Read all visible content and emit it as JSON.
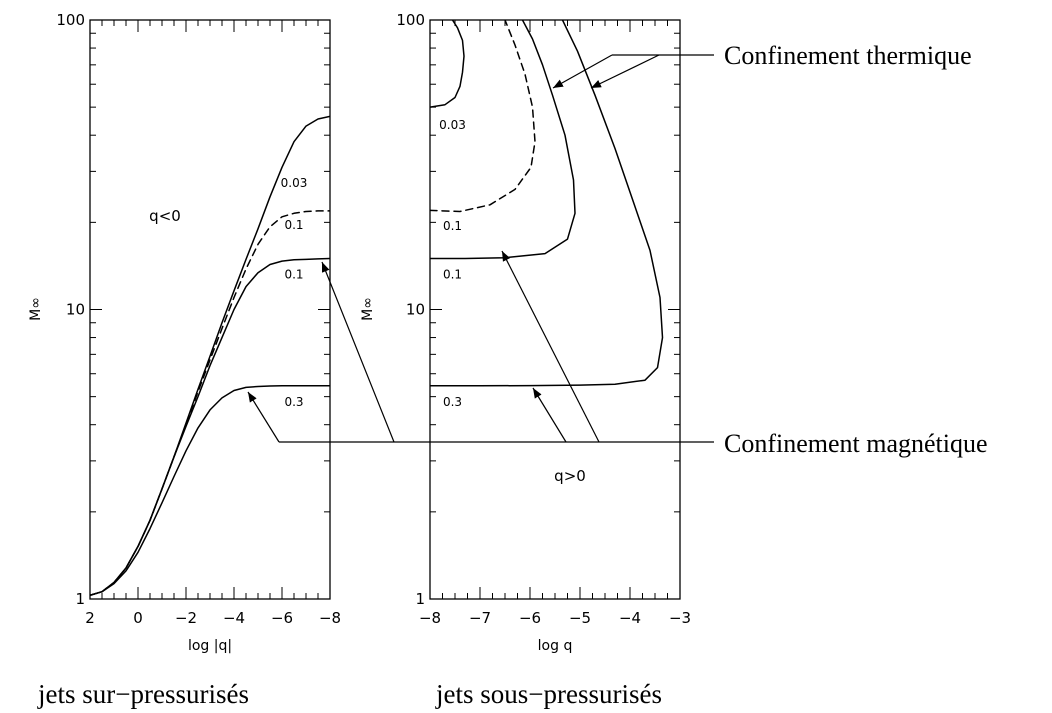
{
  "chart_data": [
    {
      "type": "line",
      "panel": "left",
      "xlabel": "log |q|",
      "ylabel": "M∞",
      "xlim": [
        2,
        -8
      ],
      "ylim": [
        1,
        100
      ],
      "yscale": "log",
      "xticks": [
        2,
        0,
        -2,
        -4,
        -6,
        -8
      ],
      "xtick_labels": [
        "2",
        "0",
        "−2",
        "−4",
        "−6",
        "−8"
      ],
      "yticks": [
        1,
        10,
        100
      ],
      "ytick_labels": [
        "1",
        "10",
        "100"
      ],
      "region_label": "q<0",
      "caption": "jets sur−pressurisés",
      "series": [
        {
          "name": "0.03",
          "style": "solid",
          "x": [
            2.0,
            1.5,
            1.0,
            0.5,
            0.0,
            -0.5,
            -1.0,
            -1.5,
            -2.0,
            -2.5,
            -3.0,
            -3.5,
            -4.0,
            -4.5,
            -5.0,
            -5.5,
            -6.0,
            -6.5,
            -7.0,
            -7.5,
            -8.0
          ],
          "y": [
            1.03,
            1.06,
            1.14,
            1.28,
            1.52,
            1.87,
            2.4,
            3.1,
            4.05,
            5.3,
            6.9,
            9.0,
            11.6,
            14.9,
            19.0,
            24.5,
            31.0,
            38.0,
            43.0,
            45.5,
            46.5
          ]
        },
        {
          "name": "0.1",
          "style": "dashed",
          "x": [
            2.0,
            1.5,
            1.0,
            0.5,
            0.0,
            -0.5,
            -1.0,
            -1.5,
            -2.0,
            -2.5,
            -3.0,
            -3.5,
            -4.0,
            -4.5,
            -5.0,
            -5.5,
            -6.0,
            -6.5,
            -7.0,
            -7.5,
            -8.0
          ],
          "y": [
            1.03,
            1.06,
            1.14,
            1.28,
            1.52,
            1.87,
            2.4,
            3.1,
            4.0,
            5.2,
            6.7,
            8.6,
            11.0,
            13.8,
            16.8,
            19.3,
            20.9,
            21.5,
            21.8,
            21.9,
            21.9
          ]
        },
        {
          "name": "0.1",
          "style": "solid",
          "x": [
            2.0,
            1.5,
            1.0,
            0.5,
            0.0,
            -0.5,
            -1.0,
            -1.5,
            -2.0,
            -2.5,
            -3.0,
            -3.5,
            -4.0,
            -4.5,
            -5.0,
            -5.5,
            -6.0,
            -6.5,
            -7.0,
            -7.5,
            -8.0
          ],
          "y": [
            1.03,
            1.06,
            1.14,
            1.28,
            1.52,
            1.87,
            2.4,
            3.1,
            3.95,
            5.0,
            6.4,
            8.0,
            10.0,
            12.0,
            13.4,
            14.3,
            14.7,
            14.85,
            14.9,
            14.95,
            15.0
          ]
        },
        {
          "name": "0.3",
          "style": "solid",
          "x": [
            2.0,
            1.5,
            1.0,
            0.5,
            0.0,
            -0.5,
            -1.0,
            -1.5,
            -2.0,
            -2.5,
            -3.0,
            -3.5,
            -4.0,
            -4.5,
            -5.0,
            -5.5,
            -6.0,
            -6.5,
            -7.0,
            -7.5,
            -8.0
          ],
          "y": [
            1.03,
            1.06,
            1.13,
            1.25,
            1.45,
            1.75,
            2.15,
            2.65,
            3.25,
            3.9,
            4.5,
            4.95,
            5.25,
            5.38,
            5.42,
            5.44,
            5.45,
            5.45,
            5.45,
            5.45,
            5.45
          ]
        }
      ]
    },
    {
      "type": "line",
      "panel": "right",
      "xlabel": "log q",
      "ylabel": "M∞",
      "xlim": [
        -8,
        -3
      ],
      "ylim": [
        1,
        100
      ],
      "yscale": "log",
      "xticks": [
        -8,
        -7,
        -6,
        -5,
        -4,
        -3
      ],
      "xtick_labels": [
        "−8",
        "−7",
        "−6",
        "−5",
        "−4",
        "−3"
      ],
      "yticks": [
        1,
        10,
        100
      ],
      "ytick_labels": [
        "1",
        "10",
        "100"
      ],
      "region_label": "q>0",
      "caption": "jets sous−pressurisés",
      "series": [
        {
          "name": "0.03",
          "style": "solid",
          "x": [
            -8.0,
            -7.7,
            -7.5,
            -7.4,
            -7.35,
            -7.32,
            -7.35,
            -7.45,
            -7.55
          ],
          "y": [
            50.0,
            51.0,
            54.0,
            59.0,
            66.0,
            75.0,
            85.0,
            94.0,
            100.0
          ]
        },
        {
          "name": "0.1",
          "style": "dashed",
          "x": [
            -8.0,
            -7.4,
            -6.8,
            -6.3,
            -5.98,
            -5.9,
            -5.95,
            -6.1,
            -6.3,
            -6.5
          ],
          "y": [
            22.0,
            21.8,
            23.0,
            26.0,
            31.0,
            38.0,
            50.0,
            65.0,
            82.0,
            100.0
          ]
        },
        {
          "name": "0.1",
          "style": "solid",
          "x": [
            -8.0,
            -7.3,
            -6.5,
            -5.7,
            -5.25,
            -5.1,
            -5.13,
            -5.3,
            -5.55,
            -5.75,
            -5.95,
            -6.15
          ],
          "y": [
            15.0,
            15.0,
            15.1,
            15.6,
            17.5,
            21.5,
            28.0,
            40.0,
            55.0,
            70.0,
            86.0,
            100.0
          ]
        },
        {
          "name": "0.3",
          "style": "solid",
          "x": [
            -8.0,
            -7.0,
            -6.0,
            -5.0,
            -4.3,
            -3.7,
            -3.45,
            -3.35,
            -3.4,
            -3.6,
            -3.95,
            -4.3,
            -4.7,
            -5.05,
            -5.35
          ],
          "y": [
            5.45,
            5.45,
            5.46,
            5.48,
            5.52,
            5.7,
            6.3,
            8.0,
            11.0,
            16.0,
            24.0,
            36.0,
            55.0,
            78.0,
            100.0
          ]
        }
      ]
    }
  ],
  "annotations": {
    "thermal": "Confinement thermique",
    "magnetic": "Confinement magnétique"
  }
}
